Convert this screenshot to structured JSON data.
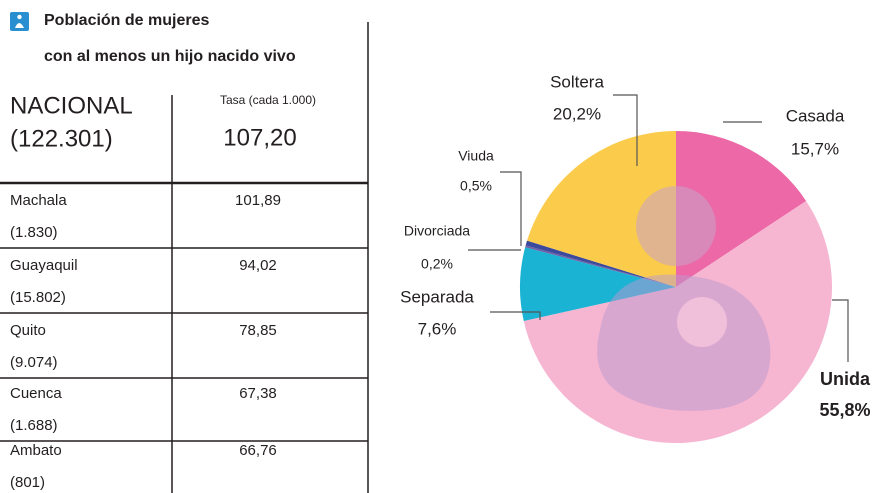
{
  "table": {
    "title": [
      "Población de mujeres",
      "con al menos un hijo nacido vivo"
    ],
    "header": {
      "name": "NACIONAL",
      "population": "(122.301)",
      "rate_label": "Tasa (cada 1.000)",
      "rate": "107,20"
    },
    "rows": [
      [
        "Machala",
        "(1.830)",
        "101,89"
      ],
      [
        "Guayaquil",
        "(15.802)",
        "94,02"
      ],
      [
        "Quito",
        "(9.074)",
        "78,85"
      ],
      [
        "Cuenca",
        "(1.688)",
        "67,38"
      ],
      [
        "Ambato",
        "(801)",
        "66,76"
      ]
    ]
  },
  "chart_data": {
    "type": "pie",
    "categories": [
      "Casada",
      "Unida",
      "Separada",
      "Divorciada",
      "Viuda",
      "Soltera"
    ],
    "values": [
      15.7,
      55.8,
      7.6,
      0.2,
      0.5,
      20.2
    ],
    "value_labels": [
      "15,7%",
      "55,8%",
      "7,6%",
      "0,2%",
      "0,5%",
      "20,2%"
    ],
    "colors": [
      "#ec68a6",
      "#f6b5d1",
      "#1bb3d3",
      "#6f5fa8",
      "#3b4a9c",
      "#fbcb4b"
    ]
  }
}
